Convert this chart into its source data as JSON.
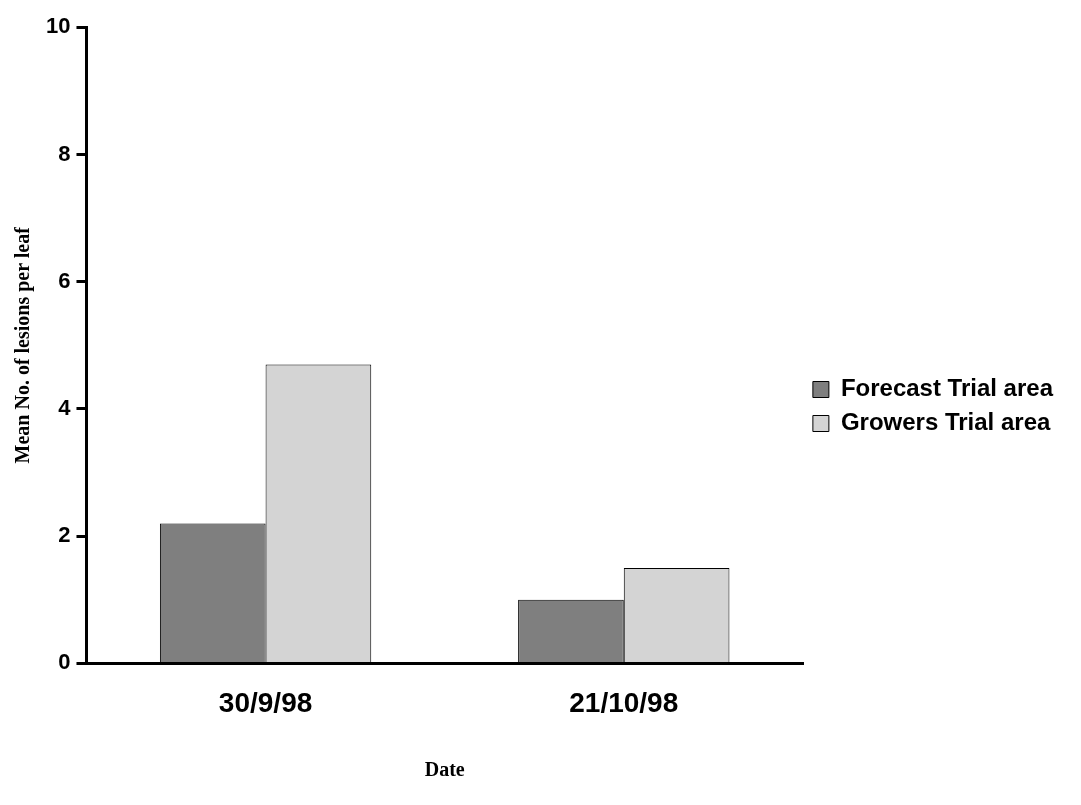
{
  "chart_data": {
    "type": "bar",
    "categories": [
      "30/9/98",
      "21/10/98"
    ],
    "series": [
      {
        "name": "Forecast Trial area",
        "color": "#7f7f7f",
        "values": [
          2.2,
          1.0
        ]
      },
      {
        "name": "Growers Trial area",
        "color": "#d4d4d4",
        "values": [
          4.7,
          1.5
        ]
      }
    ],
    "xlabel": "Date",
    "ylabel": "Mean No. of lesions per leaf",
    "ylim": [
      0,
      10
    ],
    "yticks": [
      0,
      2,
      4,
      6,
      8,
      10
    ],
    "grid": false,
    "legend": "right"
  }
}
